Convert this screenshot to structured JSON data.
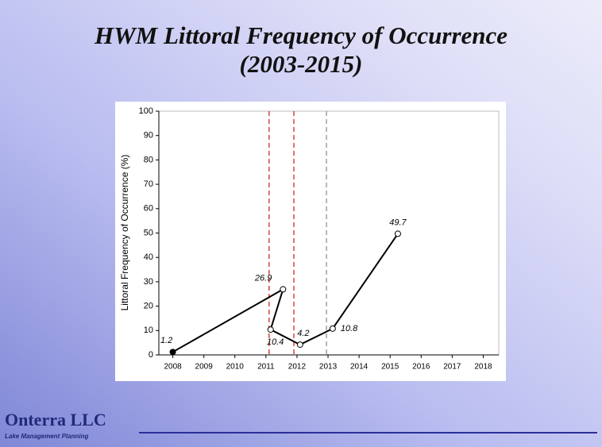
{
  "title": "HWM Littoral Frequency of Occurrence",
  "subtitle": "(2003-2015)",
  "chart_data": {
    "type": "line",
    "y_label": "Littoral Frequency of Occurrence (%)",
    "x": [
      2008.0,
      2011.55,
      2011.15,
      2012.1,
      2013.15,
      2015.25
    ],
    "series": [
      {
        "name": "HWM",
        "color": "#000000",
        "values": [
          1.2,
          26.9,
          10.4,
          4.2,
          10.8,
          49.7
        ],
        "marker_colors": [
          "#000000",
          "#ffffff",
          "#ffffff",
          "#ffffff",
          "#ffffff",
          "#ffffff"
        ]
      }
    ],
    "vlines": [
      {
        "x": 2011.1,
        "color": "#d64541"
      },
      {
        "x": 2011.9,
        "color": "#d64541"
      },
      {
        "x": 2012.95,
        "color": "#a0a0a0"
      }
    ],
    "xlim": [
      2007.55,
      2018.5
    ],
    "xticks": [
      2008,
      2009,
      2010,
      2011,
      2012,
      2013,
      2014,
      2015,
      2016,
      2017,
      2018
    ],
    "ylim": [
      0,
      100
    ],
    "yticks": [
      0,
      10,
      20,
      30,
      40,
      50,
      60,
      70,
      80,
      90,
      100
    ]
  },
  "footer": {
    "logo": "Onterra LLC",
    "tagline": "Lake Management Planning"
  }
}
